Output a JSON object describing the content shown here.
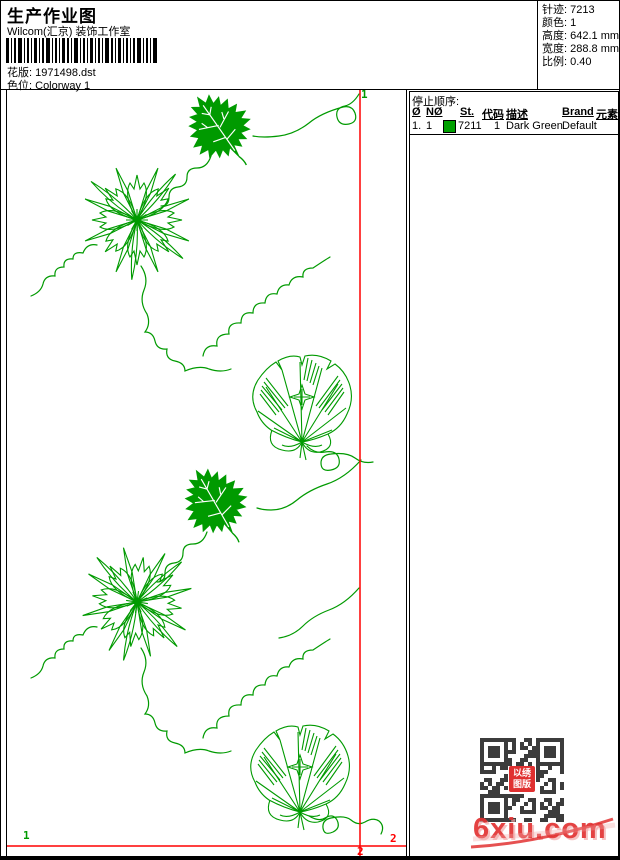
{
  "page": {
    "title": "生产作业图",
    "subtitle": "Wilcom(汇京) 装饰工作室"
  },
  "design_info": {
    "pattern_label": "花版:",
    "pattern_value": "1971498.dst",
    "colorway_label": "色位:",
    "colorway_value": "Colorway 1"
  },
  "stats": {
    "stitches_label": "针迹:",
    "stitches_value": "7213",
    "colors_label": "颜色:",
    "colors_value": "1",
    "height_label": "高度:",
    "height_value": "642.1 mm",
    "width_label": "宽度:",
    "width_value": "288.8 mm",
    "scale_label": "比例:",
    "scale_value": "0.40"
  },
  "stop_sequence": {
    "title": "停止顺序:",
    "headers": [
      "Ø",
      "NØ",
      "St.",
      "代码",
      "描述",
      "Brand",
      "元素"
    ],
    "rows": [
      {
        "index": "1.",
        "n": "1",
        "st": "7211",
        "code": "1",
        "desc": "Dark Green",
        "brand": "Default",
        "element": "",
        "swatch_color": "#00a000"
      }
    ]
  },
  "markers": {
    "start_top": "1",
    "start_left": "1",
    "end_bottom": "2",
    "end_right": "2"
  },
  "watermark": {
    "text": "6xiu.com",
    "seal_line1": "以绣",
    "seal_line2": "图版"
  },
  "colors": {
    "design_green": "#009a00",
    "marker_red": "#ff0000",
    "swatch_green": "#00a000",
    "watermark_red": "#e23333",
    "qr_module": "#3c3c3c"
  }
}
